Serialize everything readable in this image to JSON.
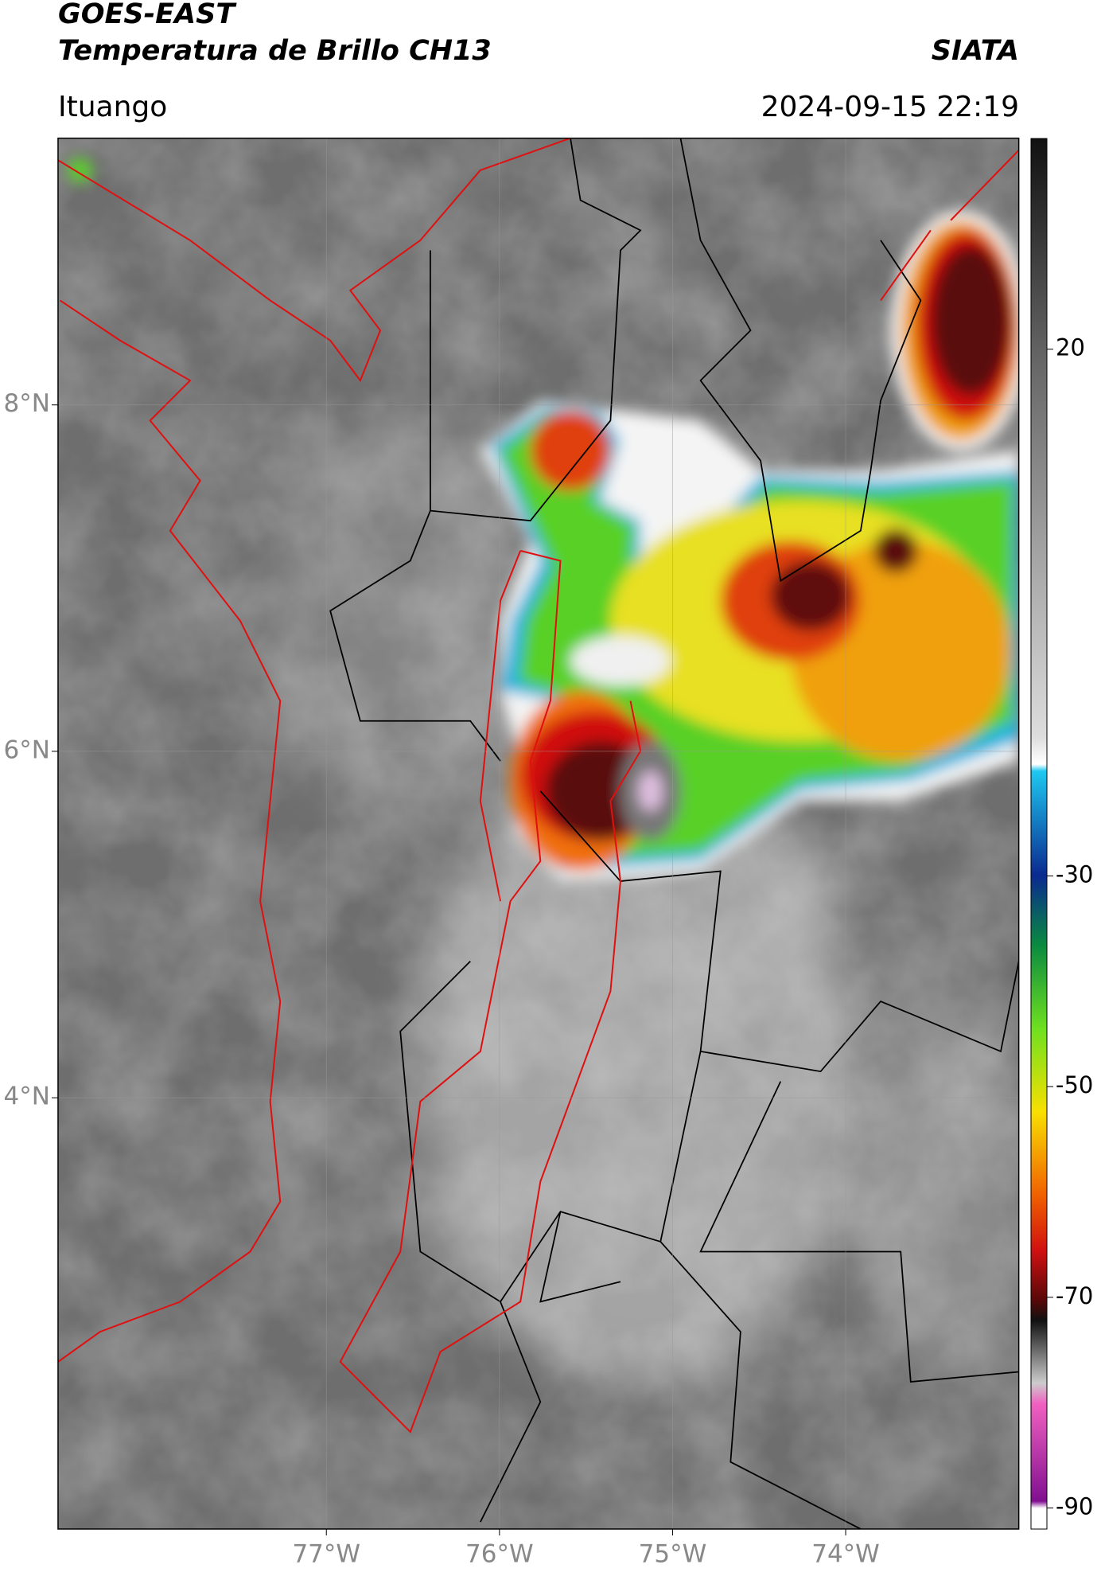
{
  "header": {
    "satellite": "GOES-EAST",
    "product": "Temperatura de Brillo CH13",
    "agency": "SIATA",
    "location": "Ituango",
    "datetime": "2024-09-15 22:19"
  },
  "map": {
    "lon_range": [
      -78.55,
      -73.0
    ],
    "lat_range": [
      1.51,
      9.54
    ],
    "lat_ticks": [
      {
        "value": 8,
        "label": "8°N"
      },
      {
        "value": 6,
        "label": "6°N"
      },
      {
        "value": 4,
        "label": "4°N"
      }
    ],
    "lon_ticks": [
      {
        "value": -77,
        "label": "77°W"
      },
      {
        "value": -76,
        "label": "76°W"
      },
      {
        "value": -75,
        "label": "75°W"
      },
      {
        "value": -74,
        "label": "74°W"
      }
    ]
  },
  "colorbar": {
    "range": [
      -92,
      40
    ],
    "ticks": [
      20,
      -30,
      -50,
      -70,
      -90
    ]
  }
}
